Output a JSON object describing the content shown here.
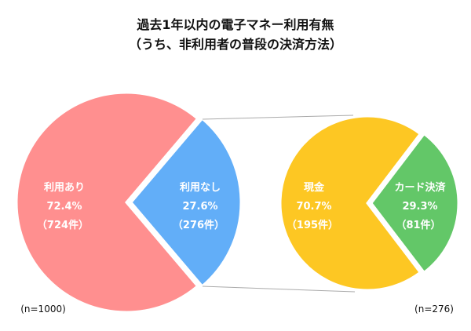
{
  "chart_data": {
    "type": "pie",
    "title_line1": "過去1年以内の電子マネー利用有無",
    "title_line2": "（うち、非利用者の普段の決済方法）",
    "pies": [
      {
        "n_label": "(n=1000)",
        "slices": [
          {
            "label": "利用あり",
            "percent": 72.4,
            "pct_label": "72.4%",
            "count_label": "（724件）",
            "color": "#FF8F8F"
          },
          {
            "label": "利用なし",
            "percent": 27.6,
            "pct_label": "27.6%",
            "count_label": "（276件）",
            "color": "#62AEF8"
          }
        ]
      },
      {
        "n_label": "(n=276)",
        "slices": [
          {
            "label": "現金",
            "percent": 70.7,
            "pct_label": "70.7%",
            "count_label": "（195件）",
            "color": "#FDC723"
          },
          {
            "label": "カード決済",
            "percent": 29.3,
            "pct_label": "29.3%",
            "count_label": "（81件）",
            "color": "#63C768"
          }
        ]
      }
    ],
    "connector_color": "#AAAAAA"
  }
}
